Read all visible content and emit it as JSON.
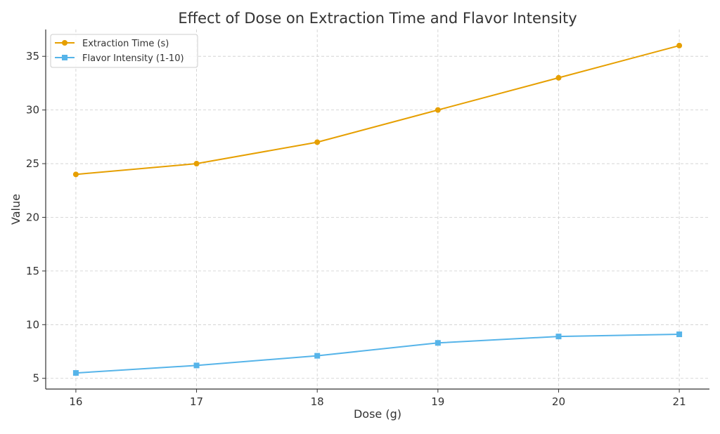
{
  "chart_data": {
    "type": "line",
    "title": "Effect of Dose on Extraction Time and Flavor Intensity",
    "xlabel": "Dose (g)",
    "ylabel": "Value",
    "x": [
      16,
      17,
      18,
      19,
      20,
      21
    ],
    "xticks": [
      "16",
      "17",
      "18",
      "19",
      "20",
      "21"
    ],
    "yticks": [
      "5",
      "10",
      "15",
      "20",
      "25",
      "30",
      "35"
    ],
    "ytick_values": [
      5,
      10,
      15,
      20,
      25,
      30,
      35
    ],
    "xlim": [
      15.75,
      21.25
    ],
    "ylim": [
      4.0,
      37.5
    ],
    "grid": true,
    "legend_position": "top-left",
    "series": [
      {
        "name": "Extraction Time (s)",
        "color": "#E69F00",
        "marker": "circle",
        "values": [
          24,
          25,
          27,
          30,
          33,
          36
        ]
      },
      {
        "name": "Flavor Intensity (1-10)",
        "color": "#56B4E9",
        "marker": "square",
        "values": [
          5.5,
          6.2,
          7.1,
          8.3,
          8.9,
          9.1
        ]
      }
    ]
  }
}
